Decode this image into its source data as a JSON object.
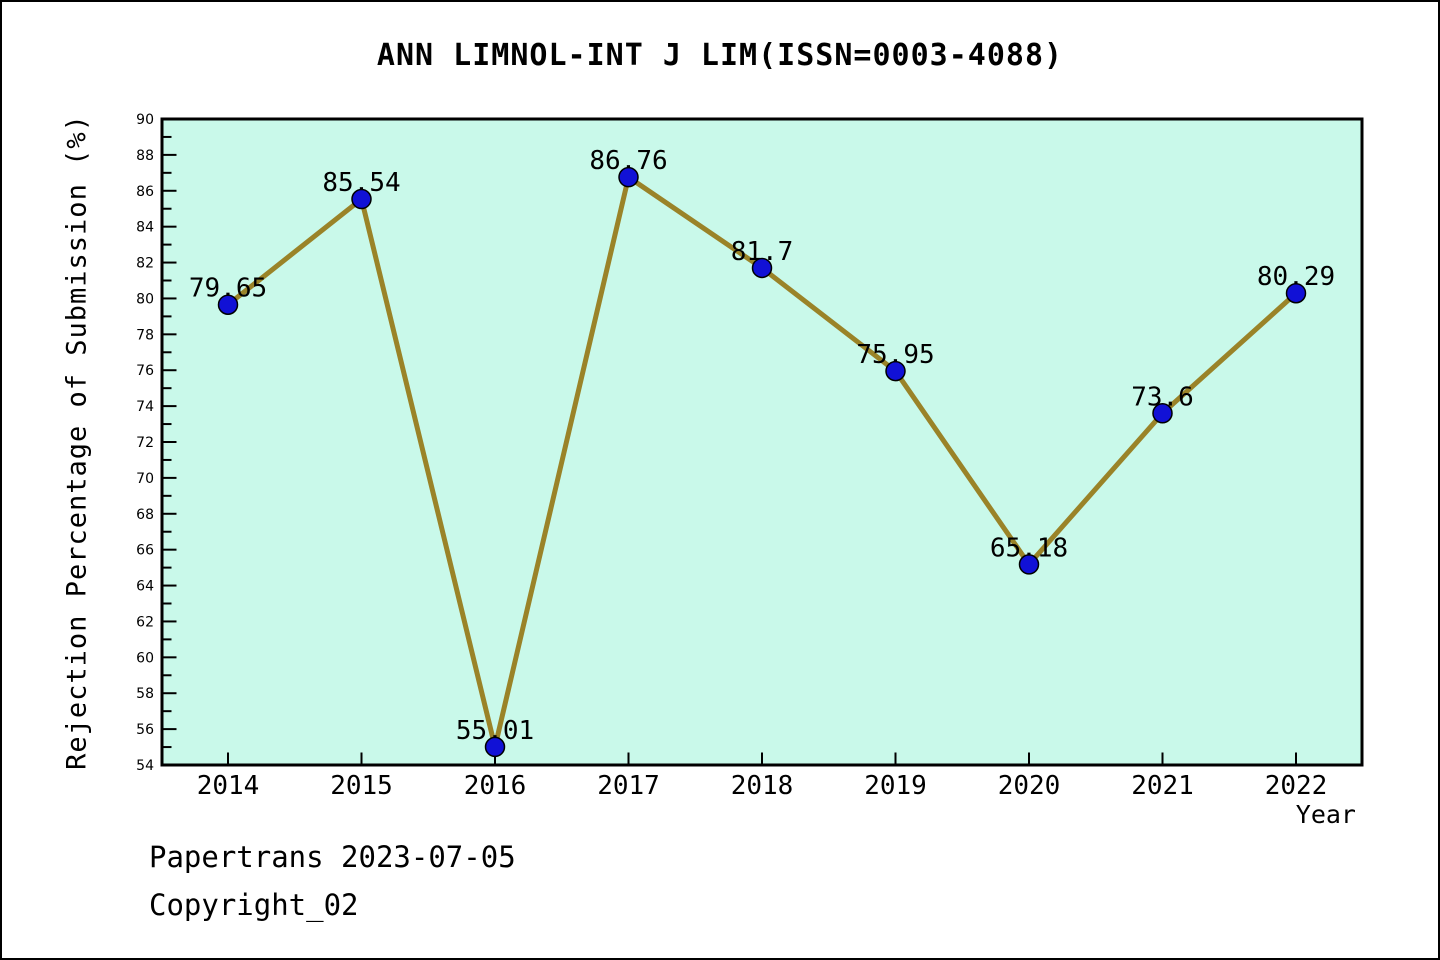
{
  "chart_data": {
    "type": "line",
    "title": "ANN LIMNOL-INT J LIM(ISSN=0003-4088)",
    "xlabel": "Year",
    "ylabel": "Rejection Percentage of Submission (%)",
    "categories": [
      "2014",
      "2015",
      "2016",
      "2017",
      "2018",
      "2019",
      "2020",
      "2021",
      "2022"
    ],
    "values": [
      79.65,
      85.54,
      55.01,
      86.76,
      81.7,
      75.95,
      65.18,
      73.6,
      80.29
    ],
    "point_labels": [
      "79.65",
      "85.54",
      "55.01",
      "86.76",
      "81.7",
      "75.95",
      "65.18",
      "73.6",
      "80.29"
    ],
    "ylim": [
      54,
      90
    ],
    "ytick_step": 2,
    "yminor_step": 1,
    "grid": false,
    "legend_position": "none",
    "colors": {
      "line": "#9A8328",
      "marker_fill": "#1111D6",
      "marker_edge": "#000000",
      "plot_background": "#C9F9EA",
      "axis": "#000000",
      "text": "#000000"
    }
  },
  "footer": {
    "line1": "Papertrans 2023-07-05",
    "line2": "Copyright_02"
  }
}
